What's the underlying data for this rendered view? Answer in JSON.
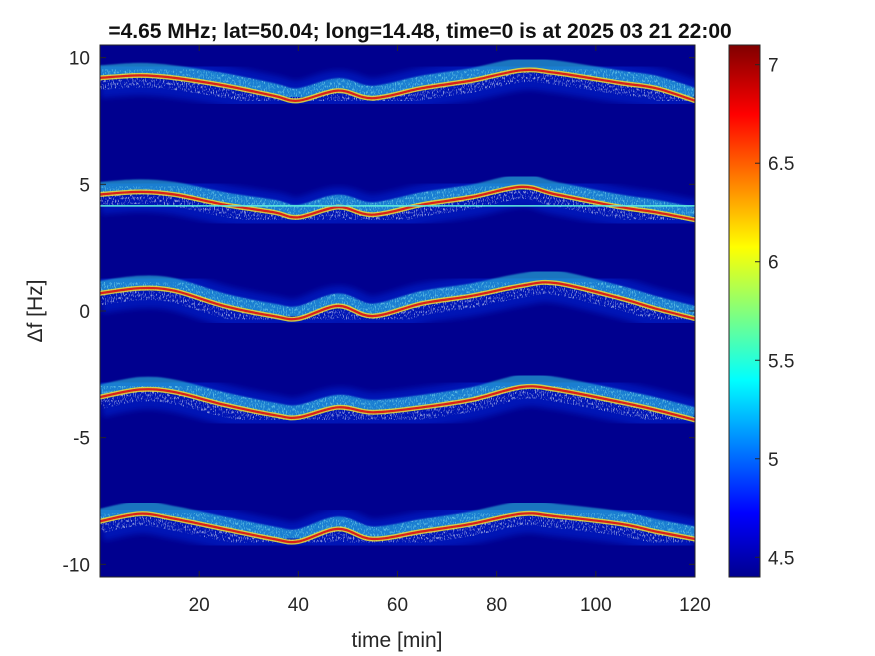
{
  "chart_data": {
    "type": "heatmap",
    "title": "=4.65 MHz;  lat=50.04; long=14.48, time=0 is at 2025 03 21 22:00",
    "xlabel": "time [min]",
    "ylabel": "Δf [Hz]",
    "xlim": [
      0,
      120
    ],
    "ylim": [
      -10.5,
      10.5
    ],
    "x_ticks": [
      20,
      40,
      60,
      80,
      100,
      120
    ],
    "y_ticks": [
      10,
      5,
      0,
      -5,
      -10
    ],
    "colorbar": {
      "colormap": "jet",
      "range": [
        4.4,
        7.1
      ],
      "ticks": [
        7,
        6.5,
        6,
        5.5,
        5,
        4.5
      ]
    },
    "background_value": 4.5,
    "traces": [
      {
        "time": [
          0,
          8,
          15,
          25,
          35,
          40,
          48,
          55,
          65,
          75,
          85,
          92,
          105,
          112,
          120
        ],
        "delta_f": [
          9.2,
          9.3,
          9.2,
          8.9,
          8.5,
          8.3,
          8.7,
          8.4,
          8.8,
          9.1,
          9.5,
          9.4,
          9.0,
          8.8,
          8.3
        ]
      },
      {
        "time": [
          0,
          8,
          15,
          25,
          35,
          40,
          48,
          55,
          65,
          75,
          85,
          92,
          105,
          112,
          120
        ],
        "delta_f": [
          4.6,
          4.7,
          4.6,
          4.2,
          3.9,
          3.7,
          4.1,
          3.8,
          4.2,
          4.5,
          4.9,
          4.6,
          4.1,
          3.9,
          3.6
        ]
      },
      {
        "time": [
          0,
          8,
          15,
          25,
          35,
          40,
          48,
          55,
          65,
          75,
          85,
          92,
          105,
          112,
          120
        ],
        "delta_f": [
          0.7,
          0.9,
          0.8,
          0.2,
          -0.2,
          -0.3,
          0.2,
          -0.2,
          0.3,
          0.6,
          1.0,
          1.1,
          0.5,
          0.1,
          -0.3
        ]
      },
      {
        "time": [
          0,
          8,
          15,
          25,
          35,
          40,
          48,
          55,
          65,
          75,
          85,
          92,
          105,
          112,
          120
        ],
        "delta_f": [
          -3.4,
          -3.1,
          -3.2,
          -3.7,
          -4.1,
          -4.2,
          -3.8,
          -4.0,
          -3.8,
          -3.5,
          -3.0,
          -3.1,
          -3.6,
          -3.9,
          -4.3
        ]
      },
      {
        "time": [
          0,
          8,
          15,
          25,
          35,
          40,
          48,
          55,
          65,
          75,
          85,
          92,
          105,
          112,
          120
        ],
        "delta_f": [
          -8.3,
          -8.0,
          -8.2,
          -8.6,
          -9.0,
          -9.1,
          -8.6,
          -9.0,
          -8.7,
          -8.4,
          -8.0,
          -8.1,
          -8.4,
          -8.7,
          -9.0
        ]
      }
    ],
    "steady_lines": [
      {
        "delta_f": 4.15
      }
    ]
  }
}
